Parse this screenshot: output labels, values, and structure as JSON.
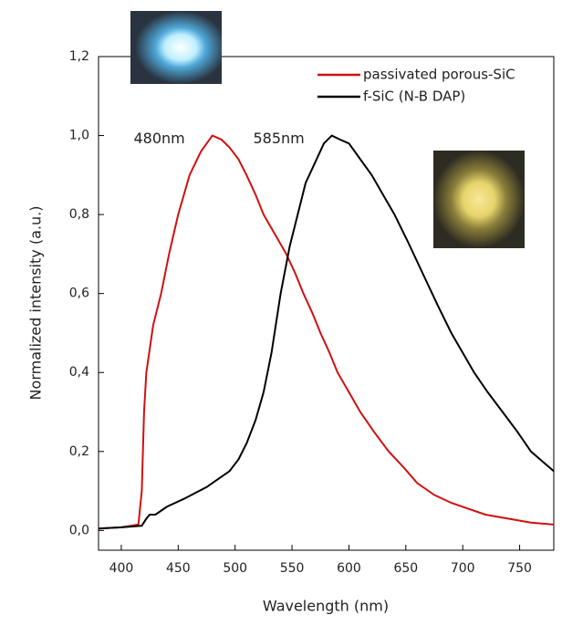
{
  "chart_data": {
    "type": "line",
    "xlabel": "Wavelength (nm)",
    "ylabel": "Normalized intensity (a.u.)",
    "xlim": [
      380,
      780
    ],
    "xticks": [
      400,
      450,
      500,
      550,
      600,
      650,
      700,
      750
    ],
    "ylim": [
      -0.05,
      1.2
    ],
    "yticks": [
      {
        "value": 0,
        "label": "0,0"
      },
      {
        "value": 0.2,
        "label": "0,2"
      },
      {
        "value": 0.4,
        "label": "0,4"
      },
      {
        "value": 0.6,
        "label": "0,6"
      },
      {
        "value": 0.8,
        "label": "0,8"
      },
      {
        "value": 1.0,
        "label": "1,0"
      },
      {
        "value": 1.2,
        "label": "1,2"
      }
    ],
    "legend": "upper right",
    "annotations": [
      {
        "text": "480nm",
        "x": 480,
        "y": 1.0
      },
      {
        "text": "585nm",
        "x": 585,
        "y": 1.0
      }
    ],
    "series": [
      {
        "name": "passivated porous-SiC",
        "color": "#d01010",
        "x": [
          380,
          400,
          415,
          418,
          420,
          422,
          428,
          435,
          442,
          450,
          460,
          470,
          480,
          488,
          495,
          503,
          510,
          518,
          525,
          535,
          545,
          553,
          560,
          568,
          575,
          583,
          590,
          600,
          610,
          622,
          635,
          648,
          660,
          675,
          690,
          705,
          720,
          740,
          760,
          780
        ],
        "values": [
          0.005,
          0.008,
          0.015,
          0.1,
          0.3,
          0.4,
          0.52,
          0.6,
          0.7,
          0.8,
          0.9,
          0.96,
          1.0,
          0.99,
          0.97,
          0.94,
          0.9,
          0.85,
          0.8,
          0.75,
          0.7,
          0.65,
          0.6,
          0.55,
          0.5,
          0.45,
          0.4,
          0.35,
          0.3,
          0.25,
          0.2,
          0.16,
          0.12,
          0.09,
          0.07,
          0.055,
          0.04,
          0.03,
          0.02,
          0.015
        ]
      },
      {
        "name": "f-SiC (N-B DAP)",
        "color": "#000000",
        "x": [
          380,
          400,
          418,
          422,
          425,
          430,
          440,
          455,
          465,
          475,
          485,
          495,
          503,
          510,
          518,
          525,
          532,
          540,
          548,
          555,
          562,
          570,
          578,
          585,
          592,
          600,
          610,
          620,
          630,
          640,
          652,
          665,
          678,
          690,
          700,
          710,
          722,
          735,
          748,
          760,
          770,
          780
        ],
        "values": [
          0.005,
          0.008,
          0.012,
          0.03,
          0.04,
          0.04,
          0.06,
          0.08,
          0.095,
          0.11,
          0.13,
          0.15,
          0.18,
          0.22,
          0.28,
          0.35,
          0.45,
          0.6,
          0.72,
          0.8,
          0.88,
          0.93,
          0.98,
          1.0,
          0.99,
          0.98,
          0.94,
          0.9,
          0.85,
          0.8,
          0.73,
          0.65,
          0.57,
          0.5,
          0.45,
          0.4,
          0.35,
          0.3,
          0.25,
          0.2,
          0.175,
          0.15
        ]
      }
    ]
  }
}
